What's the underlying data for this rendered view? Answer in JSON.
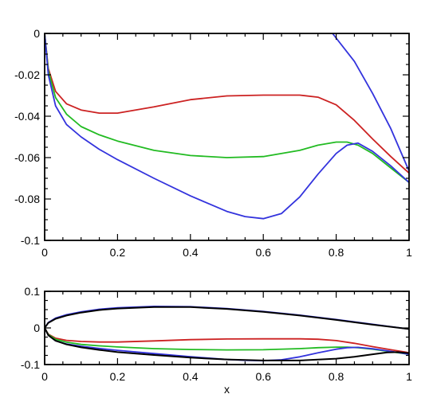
{
  "chart_data": [
    {
      "type": "line",
      "xlim": [
        0,
        1
      ],
      "ylim": [
        -0.1,
        0
      ],
      "x_ticks": [
        0,
        0.2,
        0.4,
        0.6,
        0.8,
        1
      ],
      "x_tick_labels": [
        "0",
        "0.2",
        "0.4",
        "0.6",
        "0.8",
        "1"
      ],
      "y_ticks": [
        0,
        -0.02,
        -0.04,
        -0.06,
        -0.08,
        -0.1
      ],
      "y_tick_labels": [
        "0",
        "-0.02",
        "-0.04",
        "-0.06",
        "-0.08",
        "-0.1"
      ],
      "grid": false,
      "series": [
        {
          "color": "#cc2222",
          "x": [
            0,
            0.01,
            0.03,
            0.06,
            0.1,
            0.15,
            0.2,
            0.3,
            0.4,
            0.5,
            0.6,
            0.7,
            0.75,
            0.8,
            0.85,
            0.9,
            0.95,
            1.0
          ],
          "y": [
            0,
            -0.017,
            -0.028,
            -0.034,
            -0.037,
            -0.0385,
            -0.0385,
            -0.0355,
            -0.032,
            -0.0302,
            -0.0298,
            -0.0298,
            -0.0308,
            -0.0345,
            -0.042,
            -0.051,
            -0.0595,
            -0.0675
          ]
        },
        {
          "color": "#22bb22",
          "x": [
            0,
            0.01,
            0.03,
            0.06,
            0.1,
            0.15,
            0.2,
            0.3,
            0.4,
            0.5,
            0.6,
            0.7,
            0.75,
            0.8,
            0.83,
            0.86,
            0.9,
            0.95,
            1.0
          ],
          "y": [
            0,
            -0.018,
            -0.031,
            -0.039,
            -0.045,
            -0.049,
            -0.052,
            -0.0565,
            -0.059,
            -0.06,
            -0.0595,
            -0.0565,
            -0.054,
            -0.0525,
            -0.0525,
            -0.054,
            -0.058,
            -0.065,
            -0.072
          ]
        },
        {
          "color": "#3333dd",
          "x": [
            0,
            0.01,
            0.03,
            0.06,
            0.1,
            0.15,
            0.2,
            0.3,
            0.4,
            0.5,
            0.55,
            0.6,
            0.65,
            0.7,
            0.75,
            0.8,
            0.83,
            0.86,
            0.9,
            0.95,
            1.0
          ],
          "y": [
            0,
            -0.02,
            -0.035,
            -0.044,
            -0.05,
            -0.056,
            -0.061,
            -0.07,
            -0.0785,
            -0.086,
            -0.0885,
            -0.0895,
            -0.087,
            -0.079,
            -0.068,
            -0.058,
            -0.054,
            -0.053,
            -0.057,
            -0.064,
            -0.072
          ]
        },
        {
          "color": "#3333dd",
          "x": [
            0.79,
            0.85,
            0.9,
            0.95,
            1.0
          ],
          "y": [
            0,
            -0.0135,
            -0.029,
            -0.046,
            -0.0665
          ]
        }
      ]
    },
    {
      "type": "line",
      "xlim": [
        0,
        1
      ],
      "ylim": [
        -0.1,
        0.1
      ],
      "x_ticks": [
        0,
        0.2,
        0.4,
        0.6,
        0.8,
        1
      ],
      "x_tick_labels": [
        "0",
        "0.2",
        "0.4",
        "0.6",
        "0.8",
        "1"
      ],
      "y_ticks": [
        0.1,
        0,
        -0.1
      ],
      "y_tick_labels": [
        "0.1",
        "0",
        "-0.1"
      ],
      "xlabel": "x",
      "grid": false,
      "series": [
        {
          "color": "#3333dd",
          "x": [
            0,
            0.01,
            0.03,
            0.06,
            0.1,
            0.15,
            0.2,
            0.3,
            0.4,
            0.5,
            0.6,
            0.7,
            0.8,
            0.9,
            1.0
          ],
          "y": [
            0,
            0.015,
            0.027,
            0.036,
            0.044,
            0.051,
            0.055,
            0.059,
            0.058,
            0.053,
            0.045,
            0.035,
            0.023,
            0.01,
            -0.003
          ]
        },
        {
          "color": "#000000",
          "x": [
            0,
            0.01,
            0.03,
            0.06,
            0.1,
            0.15,
            0.2,
            0.3,
            0.4,
            0.5,
            0.6,
            0.7,
            0.8,
            0.9,
            1.0
          ],
          "y": [
            0,
            0.014,
            0.025,
            0.034,
            0.042,
            0.049,
            0.053,
            0.057,
            0.057,
            0.052,
            0.044,
            0.034,
            0.022,
            0.009,
            -0.003
          ]
        },
        {
          "color": "#cc2222",
          "x": [
            0,
            0.01,
            0.03,
            0.06,
            0.1,
            0.15,
            0.2,
            0.3,
            0.4,
            0.5,
            0.6,
            0.7,
            0.75,
            0.8,
            0.85,
            0.9,
            0.95,
            1.0
          ],
          "y": [
            0,
            -0.017,
            -0.028,
            -0.034,
            -0.037,
            -0.0385,
            -0.0385,
            -0.0355,
            -0.032,
            -0.0302,
            -0.0298,
            -0.0298,
            -0.0308,
            -0.0345,
            -0.042,
            -0.051,
            -0.0595,
            -0.0675
          ]
        },
        {
          "color": "#22bb22",
          "x": [
            0,
            0.01,
            0.03,
            0.06,
            0.1,
            0.15,
            0.2,
            0.3,
            0.4,
            0.5,
            0.6,
            0.7,
            0.75,
            0.8,
            0.83,
            0.86,
            0.9,
            0.95,
            1.0
          ],
          "y": [
            0,
            -0.018,
            -0.031,
            -0.039,
            -0.045,
            -0.049,
            -0.052,
            -0.0565,
            -0.059,
            -0.06,
            -0.0595,
            -0.0565,
            -0.054,
            -0.0525,
            -0.0525,
            -0.054,
            -0.058,
            -0.065,
            -0.072
          ]
        },
        {
          "color": "#3333dd",
          "x": [
            0,
            0.01,
            0.03,
            0.06,
            0.1,
            0.15,
            0.2,
            0.3,
            0.4,
            0.5,
            0.55,
            0.6,
            0.65,
            0.7,
            0.75,
            0.8,
            0.83,
            0.86,
            0.9,
            0.95,
            1.0
          ],
          "y": [
            0,
            -0.02,
            -0.035,
            -0.044,
            -0.05,
            -0.056,
            -0.061,
            -0.07,
            -0.0785,
            -0.086,
            -0.0885,
            -0.0895,
            -0.087,
            -0.079,
            -0.068,
            -0.058,
            -0.054,
            -0.053,
            -0.057,
            -0.064,
            -0.072
          ]
        },
        {
          "color": "#000000",
          "x": [
            0,
            0.01,
            0.03,
            0.06,
            0.1,
            0.15,
            0.2,
            0.3,
            0.4,
            0.5,
            0.6,
            0.7,
            0.8,
            0.85,
            0.9,
            0.94,
            0.97,
            1.0
          ],
          "y": [
            0,
            -0.02,
            -0.035,
            -0.045,
            -0.053,
            -0.06,
            -0.066,
            -0.074,
            -0.081,
            -0.086,
            -0.089,
            -0.089,
            -0.084,
            -0.079,
            -0.072,
            -0.067,
            -0.066,
            -0.069
          ]
        }
      ]
    }
  ]
}
